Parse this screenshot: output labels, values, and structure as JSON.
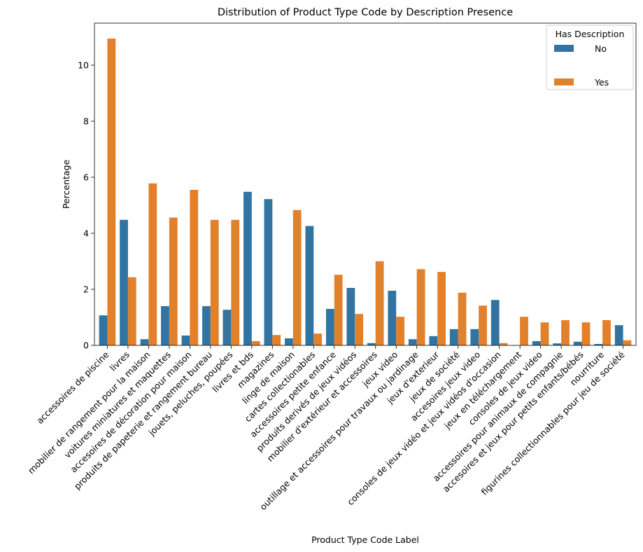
{
  "chart_data": {
    "type": "bar",
    "title": "Distribution of Product Type Code by Description Presence",
    "xlabel": "Product Type Code Label",
    "ylabel": "Percentage",
    "ylim": [
      0,
      11.5
    ],
    "yticks": [
      0,
      2,
      4,
      6,
      8,
      10
    ],
    "grid": false,
    "legend": {
      "title": "Has Description",
      "placement": "top-right"
    },
    "categories": [
      "accessoires de piscine",
      "livres",
      "mobilier de rangement pour la maison",
      "voitures miniatures et maquettes",
      "accesoires de décoration pour maison",
      "produits de papeterie et rangement bureau",
      "jouets, peluches, poupées",
      "livres et bds",
      "magazines",
      "linge de maison",
      "cartes collectionables",
      "accessoires petite enfance",
      "produits derivés de jeux vidéos",
      "mobilier d'extérieur et accessoires",
      "jeux video",
      "outillage et accessoires pour travaux ou jardinage",
      "jeux d'exterieur",
      "jeux de société",
      "accesoires jeux video",
      "consoles de jeux vidéo et jeux vidéos d'occasion",
      "jeux en téléchargement",
      "consoles de jeux video",
      "accessoires pour animaux de compagnie",
      "accesoires et jeux pour petits enfants/bébés",
      "nourriture",
      "figurines collectionnables pour jeu de société"
    ],
    "series": [
      {
        "name": "No",
        "color": "#3274a1",
        "values": [
          1.07,
          4.48,
          0.22,
          1.4,
          0.35,
          1.4,
          1.27,
          5.48,
          5.22,
          0.25,
          4.26,
          1.3,
          2.05,
          0.08,
          1.95,
          0.22,
          0.33,
          0.58,
          0.58,
          1.62,
          0.0,
          0.15,
          0.07,
          0.13,
          0.05,
          0.72
        ]
      },
      {
        "name": "Yes",
        "color": "#e1812c",
        "values": [
          10.95,
          2.43,
          5.78,
          4.56,
          5.55,
          4.48,
          4.48,
          0.15,
          0.37,
          4.83,
          0.42,
          2.52,
          1.12,
          3.0,
          1.02,
          2.72,
          2.62,
          1.88,
          1.42,
          0.08,
          1.02,
          0.82,
          0.9,
          0.82,
          0.9,
          0.18
        ]
      }
    ]
  }
}
